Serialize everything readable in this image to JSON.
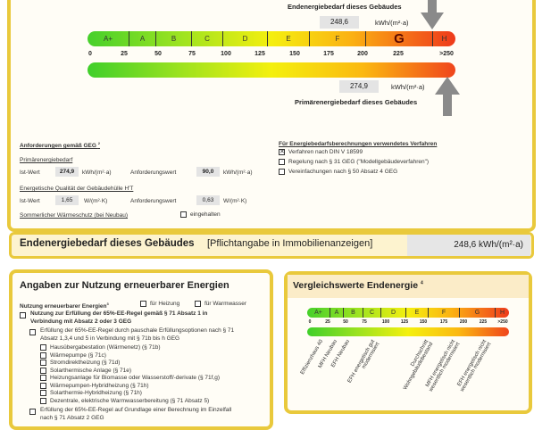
{
  "scale": {
    "end_label": "Endenergiebedarf dieses Gebäudes",
    "end_value": "248,6",
    "unit": "kWh/(m²·a)",
    "primary_label": "Primärenergiebedarf dieses Gebäudes",
    "primary_value": "274,9",
    "classes": [
      "A+",
      "A",
      "B",
      "C",
      "D",
      "E",
      "F",
      "G",
      "H"
    ],
    "highlighted_class": "G",
    "ticks": [
      "0",
      "25",
      "50",
      "75",
      "100",
      "125",
      "150",
      "175",
      "200",
      "225",
      ">250"
    ]
  },
  "requirements": {
    "title": "Anforderungen gemäß GEG",
    "title_sup": "2",
    "primary_heading": "Primärenergiebedarf",
    "ist_label": "Ist-Wert",
    "ist_value": "274,9",
    "unit_kwh": "kWh/(m²·a)",
    "anf_label": "Anforderungswert",
    "anf_value": "90,0",
    "envelope_heading": "Energetische Qualität der Gebäudehülle H'T",
    "ist_value2": "1,65",
    "unit_w": "W/(m²·K)",
    "anf_value2": "0,63",
    "summer_label": "Sommerlicher Wärmeschutz (bei Neubau)",
    "summer_check": "eingehalten"
  },
  "method": {
    "title": "Für Energiebedarfsberechnungen verwendetes Verfahren",
    "options": [
      {
        "label": "Verfahren nach DIN V 18599",
        "checked": true
      },
      {
        "label": "Regelung nach § 31 GEG (\"Modellgebäudeverfahren\")",
        "checked": false
      },
      {
        "label": "Vereinfachungen nach § 50 Absatz 4 GEG",
        "checked": false
      }
    ]
  },
  "summary": {
    "title": "Endenergiebedarf dieses Gebäudes",
    "note": "[Pflichtangabe in Immobilienanzeigen]",
    "value": "248,6 kWh/(m²·a)"
  },
  "renewables": {
    "title": "Angaben zur Nutzung erneuerbarer Energien",
    "usage_label": "Nutzung erneuerbarer Energien",
    "usage_sup": "3",
    "heating": "für Heizung",
    "water": "für Warmwasser",
    "rule_main": "Nutzung zur Erfüllung der 65%-EE-Regel gemäß § 71 Absatz 1 in Verbindung mit Absatz 2 oder 3 GEG",
    "rule_flat": "Erfüllung der 65%-EE-Regel durch pauschale Erfüllungsoptionen nach § 71 Absatz 1,3,4 und 5 in Verbindung mit § 71b bis h GEG",
    "options": [
      "Hausübergabestation (Wärmenetz) (§ 71b)",
      "Wärmepumpe (§ 71c)",
      "Stromdirektheizung (§ 71d)",
      "Solarthermische Anlage (§ 71e)",
      "Heizungsanlage für Biomasse oder Wasserstoff/-derivate (§ 71f,g)",
      "Wärmepumpen-Hybridheizung (§ 71h)",
      "Solarthermie-Hybridheizung (§ 71h)",
      "Dezentrale, elektrische Warmwasserbereitung (§ 71 Absatz 5)"
    ],
    "rule_calc": "Erfüllung der 65%-EE-Regel auf Grundlage einer Berechnung im Einzelfall nach § 71 Absatz 2 GEG"
  },
  "comparison": {
    "title": "Vergleichswerte Endenergie",
    "title_sup": "4",
    "labels": [
      "Effizienzhaus 40",
      "MFH Neubau",
      "EFH Neubau",
      "EFH energetisch gut modernisiert",
      "Durchschnitt Wohngebäudebestand",
      "MFH energetisch nicht wesentlich modernisiert",
      "EFH energetisch nicht wesentlich modernisiert"
    ]
  },
  "colors": {
    "frame": "#e9c93c",
    "arrow": "#8a8a8a"
  }
}
